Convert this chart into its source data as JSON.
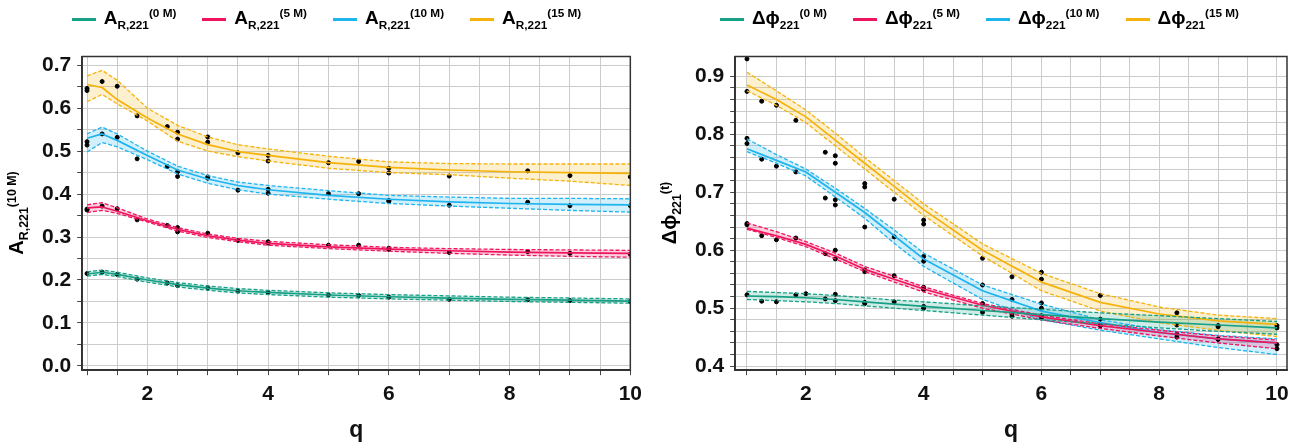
{
  "chart_data": [
    {
      "type": "line",
      "xlabel": "q",
      "ylabel": "A$_{R,221}$$^{(10 M)}$",
      "legend": "top",
      "grid": true,
      "xlim": [
        0.92,
        10
      ],
      "ylim": [
        -0.01,
        0.72
      ],
      "xticks": [
        {
          "value": 1,
          "label": null
        },
        {
          "value": 1.5,
          "label": null
        },
        2,
        {
          "value": 2.5,
          "label": null
        },
        {
          "value": 3,
          "label": null
        },
        {
          "value": 3.5,
          "label": null
        },
        4,
        {
          "value": 4.5,
          "label": null
        },
        {
          "value": 5,
          "label": null
        },
        {
          "value": 5.5,
          "label": null
        },
        6,
        {
          "value": 6.5,
          "label": null
        },
        {
          "value": 7,
          "label": null
        },
        {
          "value": 7.5,
          "label": null
        },
        8,
        {
          "value": 8.5,
          "label": null
        },
        {
          "value": 9,
          "label": null
        },
        {
          "value": 9.5,
          "label": null
        },
        10
      ],
      "yticks": [
        {
          "value": 0,
          "label": "0.0"
        },
        {
          "value": 0.05,
          "label": null
        },
        0.1,
        {
          "value": 0.15,
          "label": null
        },
        0.2,
        {
          "value": 0.25,
          "label": null
        },
        0.3,
        {
          "value": 0.35,
          "label": null
        },
        0.4,
        {
          "value": 0.45,
          "label": null
        },
        0.5,
        {
          "value": 0.55,
          "label": null
        },
        0.6,
        {
          "value": 0.65,
          "label": null
        },
        0.7
      ],
      "x": [
        1,
        1.25,
        1.5,
        2,
        2.5,
        3,
        3.5,
        4,
        5,
        6,
        7,
        8,
        9,
        10
      ],
      "series": [
        {
          "type": "line",
          "name": "A$_{R,221}$$^{(0 M)}$",
          "color": "#16a085",
          "values": [
            0.214,
            0.218,
            0.213,
            0.2,
            0.189,
            0.181,
            0.175,
            0.171,
            0.165,
            0.161,
            0.158,
            0.155,
            0.153,
            0.151
          ],
          "upper": [
            0.219,
            0.223,
            0.218,
            0.205,
            0.194,
            0.186,
            0.18,
            0.176,
            0.17,
            0.166,
            0.163,
            0.16,
            0.158,
            0.156
          ],
          "lower": [
            0.209,
            0.213,
            0.208,
            0.195,
            0.184,
            0.176,
            0.17,
            0.166,
            0.16,
            0.156,
            0.153,
            0.15,
            0.148,
            0.146
          ]
        },
        {
          "type": "line",
          "line_style": "dashed",
          "color": "#16a085",
          "values": [
            0.219,
            0.223,
            0.218,
            0.205,
            0.194,
            0.186,
            0.18,
            0.176,
            0.17,
            0.166,
            0.163,
            0.16,
            0.158,
            0.156
          ]
        },
        {
          "type": "line",
          "line_style": "dashed",
          "color": "#16a085",
          "values": [
            0.209,
            0.213,
            0.208,
            0.195,
            0.184,
            0.176,
            0.17,
            0.166,
            0.16,
            0.156,
            0.153,
            0.15,
            0.148,
            0.146
          ]
        },
        {
          "type": "line",
          "name": "A$_{R,221}$$^{(5 M)}$",
          "color": "#f0145f",
          "values": [
            0.368,
            0.37,
            0.36,
            0.338,
            0.318,
            0.303,
            0.293,
            0.285,
            0.277,
            0.272,
            0.268,
            0.265,
            0.263,
            0.262
          ],
          "upper": [
            0.375,
            0.38,
            0.368,
            0.342,
            0.322,
            0.307,
            0.297,
            0.29,
            0.282,
            0.276,
            0.273,
            0.271,
            0.27,
            0.269
          ],
          "lower": [
            0.357,
            0.362,
            0.355,
            0.335,
            0.314,
            0.299,
            0.289,
            0.281,
            0.273,
            0.267,
            0.262,
            0.258,
            0.255,
            0.253
          ]
        },
        {
          "type": "line",
          "line_style": "dashed",
          "color": "#f0145f",
          "values": [
            0.375,
            0.38,
            0.368,
            0.342,
            0.322,
            0.307,
            0.297,
            0.29,
            0.282,
            0.276,
            0.273,
            0.271,
            0.27,
            0.269
          ]
        },
        {
          "type": "line",
          "line_style": "dashed",
          "color": "#f0145f",
          "values": [
            0.357,
            0.362,
            0.355,
            0.335,
            0.314,
            0.299,
            0.289,
            0.281,
            0.273,
            0.267,
            0.262,
            0.258,
            0.255,
            0.253
          ]
        },
        {
          "type": "line",
          "name": "A$_{R,221}$$^{(10 M)}$",
          "color": "#1eb4ee",
          "values": [
            0.53,
            0.54,
            0.525,
            0.49,
            0.456,
            0.435,
            0.42,
            0.41,
            0.397,
            0.388,
            0.382,
            0.378,
            0.376,
            0.375
          ],
          "upper": [
            0.54,
            0.556,
            0.54,
            0.5,
            0.465,
            0.443,
            0.428,
            0.42,
            0.408,
            0.397,
            0.393,
            0.39,
            0.39,
            0.389
          ],
          "lower": [
            0.498,
            0.52,
            0.51,
            0.48,
            0.447,
            0.425,
            0.41,
            0.4,
            0.388,
            0.378,
            0.372,
            0.367,
            0.362,
            0.358
          ]
        },
        {
          "type": "line",
          "line_style": "dashed",
          "color": "#1eb4ee",
          "values": [
            0.54,
            0.556,
            0.54,
            0.5,
            0.465,
            0.443,
            0.428,
            0.42,
            0.408,
            0.397,
            0.393,
            0.39,
            0.39,
            0.389
          ]
        },
        {
          "type": "line",
          "line_style": "dashed",
          "color": "#1eb4ee",
          "values": [
            0.498,
            0.52,
            0.51,
            0.48,
            0.447,
            0.425,
            0.41,
            0.4,
            0.388,
            0.378,
            0.372,
            0.367,
            0.362,
            0.358
          ]
        },
        {
          "type": "line",
          "name": "A$_{R,221}$$^{(15 M)}$",
          "color": "#f5b20b",
          "values": [
            0.655,
            0.648,
            0.62,
            0.577,
            0.54,
            0.515,
            0.499,
            0.49,
            0.473,
            0.462,
            0.456,
            0.452,
            0.45,
            0.448
          ],
          "upper": [
            0.675,
            0.688,
            0.665,
            0.6,
            0.56,
            0.533,
            0.515,
            0.505,
            0.488,
            0.475,
            0.471,
            0.47,
            0.47,
            0.47
          ],
          "lower": [
            0.615,
            0.632,
            0.61,
            0.57,
            0.523,
            0.5,
            0.487,
            0.477,
            0.46,
            0.45,
            0.445,
            0.437,
            0.43,
            0.42
          ]
        },
        {
          "type": "line",
          "line_style": "dashed",
          "color": "#f5b20b",
          "values": [
            0.675,
            0.688,
            0.665,
            0.6,
            0.56,
            0.533,
            0.515,
            0.505,
            0.488,
            0.475,
            0.471,
            0.47,
            0.47,
            0.47
          ]
        },
        {
          "type": "line",
          "line_style": "dashed",
          "color": "#f5b20b",
          "values": [
            0.615,
            0.632,
            0.61,
            0.57,
            0.523,
            0.5,
            0.487,
            0.477,
            0.46,
            0.45,
            0.445,
            0.437,
            0.43,
            0.42
          ]
        },
        {
          "type": "scatter",
          "color": "#000000",
          "marker": "circle",
          "x": [
            1,
            1,
            1.25,
            1.5,
            1.83,
            2.33,
            2.5,
            2.5,
            3,
            3,
            3.5,
            4,
            4,
            5,
            5.5,
            6,
            6,
            7,
            8.3,
            9,
            10,
            1,
            1,
            1.25,
            1.5,
            1.83,
            2.33,
            2.5,
            2.5,
            3,
            3,
            3.5,
            4,
            4,
            5,
            5.5,
            6,
            6,
            7,
            8.3,
            9,
            10,
            1,
            1,
            1.25,
            1.5,
            1.83,
            2.33,
            2.5,
            2.5,
            3,
            3.5,
            4,
            4,
            5,
            5.5,
            6,
            6,
            7,
            8.3,
            9,
            10,
            1,
            1.25,
            1.5,
            1.83,
            2.33,
            2.5,
            3,
            3.5,
            4,
            5,
            5.5,
            6,
            7,
            8.3,
            9,
            10
          ],
          "values": [
            0.646,
            0.641,
            0.662,
            0.651,
            0.582,
            0.557,
            0.544,
            0.528,
            0.533,
            0.521,
            0.496,
            0.49,
            0.477,
            0.473,
            0.476,
            0.46,
            0.449,
            0.442,
            0.454,
            0.443,
            0.44,
            0.522,
            0.514,
            0.54,
            0.532,
            0.482,
            0.464,
            0.452,
            0.441,
            0.44,
            0.437,
            0.409,
            0.411,
            0.402,
            0.401,
            0.401,
            0.385,
            0.383,
            0.374,
            0.381,
            0.373,
            0.373,
            0.365,
            0.363,
            0.372,
            0.366,
            0.34,
            0.327,
            0.322,
            0.312,
            0.309,
            0.292,
            0.289,
            0.286,
            0.281,
            0.281,
            0.274,
            0.271,
            0.264,
            0.266,
            0.262,
            0.26,
            0.215,
            0.218,
            0.213,
            0.202,
            0.193,
            0.187,
            0.182,
            0.174,
            0.171,
            0.165,
            0.164,
            0.16,
            0.155,
            0.154,
            0.152,
            0.15
          ]
        }
      ]
    },
    {
      "type": "line",
      "xlabel": "q",
      "ylabel": "Δϕ$_{221}$$^{(t)}$",
      "legend": "top",
      "grid": true,
      "xlim": [
        0.8,
        10.17
      ],
      "ylim": [
        0.393,
        0.934
      ],
      "xticks": [
        {
          "value": 1,
          "label": null
        },
        {
          "value": 1.5,
          "label": null
        },
        2,
        {
          "value": 2.5,
          "label": null
        },
        {
          "value": 3,
          "label": null
        },
        {
          "value": 3.5,
          "label": null
        },
        4,
        {
          "value": 4.5,
          "label": null
        },
        {
          "value": 5,
          "label": null
        },
        {
          "value": 5.5,
          "label": null
        },
        6,
        {
          "value": 6.5,
          "label": null
        },
        {
          "value": 7,
          "label": null
        },
        {
          "value": 7.5,
          "label": null
        },
        8,
        {
          "value": 8.5,
          "label": null
        },
        {
          "value": 9,
          "label": null
        },
        {
          "value": 9.5,
          "label": null
        },
        10
      ],
      "yticks": [
        0.4,
        {
          "value": 0.42,
          "label": null
        },
        {
          "value": 0.44,
          "label": null
        },
        {
          "value": 0.46,
          "label": null
        },
        {
          "value": 0.48,
          "label": null
        },
        0.5,
        {
          "value": 0.52,
          "label": null
        },
        {
          "value": 0.54,
          "label": null
        },
        {
          "value": 0.56,
          "label": null
        },
        {
          "value": 0.58,
          "label": null
        },
        0.6,
        {
          "value": 0.62,
          "label": null
        },
        {
          "value": 0.64,
          "label": null
        },
        {
          "value": 0.66,
          "label": null
        },
        {
          "value": 0.68,
          "label": null
        },
        0.7,
        {
          "value": 0.72,
          "label": null
        },
        {
          "value": 0.74,
          "label": null
        },
        {
          "value": 0.76,
          "label": null
        },
        {
          "value": 0.78,
          "label": null
        },
        0.8,
        {
          "value": 0.82,
          "label": null
        },
        {
          "value": 0.84,
          "label": null
        },
        {
          "value": 0.86,
          "label": null
        },
        {
          "value": 0.88,
          "label": null
        },
        0.9
      ],
      "x": [
        1,
        1.5,
        2,
        2.5,
        3,
        3.5,
        4,
        5,
        6,
        7,
        8,
        9,
        10
      ],
      "series": [
        {
          "type": "line",
          "name": "Δϕ$_{221}$$^{(0 M)}$",
          "color": "#16a085",
          "values": [
            0.521,
            0.52,
            0.518,
            0.515,
            0.511,
            0.507,
            0.503,
            0.496,
            0.489,
            0.482,
            0.476,
            0.471,
            0.466
          ],
          "upper": [
            0.529,
            0.527,
            0.525,
            0.522,
            0.518,
            0.514,
            0.511,
            0.504,
            0.498,
            0.492,
            0.487,
            0.482,
            0.477
          ],
          "lower": [
            0.515,
            0.513,
            0.511,
            0.508,
            0.504,
            0.5,
            0.496,
            0.488,
            0.48,
            0.473,
            0.466,
            0.46,
            0.455
          ]
        },
        {
          "type": "line",
          "line_style": "dashed",
          "color": "#16a085",
          "values": [
            0.529,
            0.527,
            0.525,
            0.522,
            0.518,
            0.514,
            0.511,
            0.504,
            0.498,
            0.492,
            0.487,
            0.482,
            0.477
          ]
        },
        {
          "type": "line",
          "line_style": "dashed",
          "color": "#16a085",
          "values": [
            0.515,
            0.513,
            0.511,
            0.508,
            0.504,
            0.5,
            0.496,
            0.488,
            0.48,
            0.473,
            0.466,
            0.46,
            0.455
          ]
        },
        {
          "type": "line",
          "name": "Δϕ$_{221}$$^{(5 M)}$",
          "color": "#f0145f",
          "values": [
            0.638,
            0.625,
            0.61,
            0.59,
            0.567,
            0.55,
            0.533,
            0.505,
            0.485,
            0.47,
            0.458,
            0.447,
            0.44
          ],
          "upper": [
            0.647,
            0.632,
            0.615,
            0.595,
            0.572,
            0.555,
            0.537,
            0.508,
            0.488,
            0.473,
            0.462,
            0.452,
            0.445
          ],
          "lower": [
            0.636,
            0.622,
            0.606,
            0.585,
            0.563,
            0.545,
            0.528,
            0.5,
            0.48,
            0.465,
            0.452,
            0.44,
            0.43
          ]
        },
        {
          "type": "line",
          "line_style": "dashed",
          "color": "#f0145f",
          "values": [
            0.647,
            0.632,
            0.615,
            0.595,
            0.572,
            0.555,
            0.537,
            0.508,
            0.488,
            0.473,
            0.462,
            0.452,
            0.445
          ]
        },
        {
          "type": "line",
          "line_style": "dashed",
          "color": "#f0145f",
          "values": [
            0.636,
            0.622,
            0.606,
            0.585,
            0.563,
            0.545,
            0.528,
            0.5,
            0.48,
            0.465,
            0.452,
            0.44,
            0.43
          ]
        },
        {
          "type": "line",
          "name": "Δϕ$_{221}$$^{(10 M)}$",
          "color": "#1eb4ee",
          "values": [
            0.775,
            0.755,
            0.735,
            0.7,
            0.665,
            0.625,
            0.585,
            0.53,
            0.495,
            0.475,
            0.458,
            0.447,
            0.44
          ],
          "upper": [
            0.792,
            0.765,
            0.74,
            0.707,
            0.672,
            0.635,
            0.595,
            0.54,
            0.507,
            0.48,
            0.463,
            0.453,
            0.447
          ],
          "lower": [
            0.77,
            0.75,
            0.728,
            0.692,
            0.655,
            0.612,
            0.572,
            0.515,
            0.48,
            0.462,
            0.447,
            0.432,
            0.42
          ]
        },
        {
          "type": "line",
          "line_style": "dashed",
          "color": "#1eb4ee",
          "values": [
            0.792,
            0.765,
            0.74,
            0.707,
            0.672,
            0.635,
            0.595,
            0.54,
            0.507,
            0.48,
            0.463,
            0.453,
            0.447
          ]
        },
        {
          "type": "line",
          "line_style": "dashed",
          "color": "#1eb4ee",
          "values": [
            0.77,
            0.75,
            0.728,
            0.692,
            0.655,
            0.612,
            0.572,
            0.515,
            0.48,
            0.462,
            0.447,
            0.432,
            0.42
          ]
        },
        {
          "type": "line",
          "name": "Δϕ$_{221}$$^{(15 M)}$",
          "color": "#f5b20b",
          "values": [
            0.885,
            0.86,
            0.83,
            0.79,
            0.75,
            0.71,
            0.67,
            0.6,
            0.545,
            0.51,
            0.49,
            0.478,
            0.472
          ],
          "upper": [
            0.907,
            0.875,
            0.842,
            0.802,
            0.76,
            0.72,
            0.68,
            0.611,
            0.56,
            0.525,
            0.502,
            0.488,
            0.482
          ],
          "lower": [
            0.875,
            0.85,
            0.82,
            0.78,
            0.74,
            0.7,
            0.66,
            0.59,
            0.53,
            0.495,
            0.475,
            0.462,
            0.451
          ]
        },
        {
          "type": "line",
          "line_style": "dashed",
          "color": "#f5b20b",
          "values": [
            0.907,
            0.875,
            0.842,
            0.802,
            0.76,
            0.72,
            0.68,
            0.611,
            0.56,
            0.525,
            0.502,
            0.488,
            0.482
          ]
        },
        {
          "type": "line",
          "line_style": "dashed",
          "color": "#f5b20b",
          "values": [
            0.875,
            0.85,
            0.82,
            0.78,
            0.74,
            0.7,
            0.66,
            0.59,
            0.53,
            0.495,
            0.475,
            0.462,
            0.451
          ]
        },
        {
          "type": "scatter",
          "color": "#000000",
          "marker": "circle",
          "x": [
            1,
            1,
            1.25,
            1.5,
            1.83,
            2.33,
            2.5,
            2.5,
            3,
            3,
            3.5,
            4,
            4,
            5,
            5.5,
            6,
            6,
            7,
            8.3,
            9,
            10,
            1,
            1,
            1.25,
            1.5,
            1.83,
            2.33,
            2.5,
            2.5,
            3,
            3.5,
            4,
            4,
            5,
            5.5,
            6,
            6,
            7,
            8.3,
            9,
            10,
            1,
            1,
            1.25,
            1.5,
            1.83,
            2.33,
            2.5,
            2.5,
            3,
            3,
            3.5,
            4,
            4,
            5,
            5.5,
            6,
            6,
            7,
            8.3,
            9,
            10,
            1,
            1.25,
            1.5,
            1.83,
            2,
            2.33,
            2.5,
            2.5,
            3,
            3,
            3.5,
            4,
            4,
            5,
            5.5,
            7,
            8.3,
            9,
            10
          ],
          "values": [
            0.93,
            0.874,
            0.857,
            0.85,
            0.824,
            0.769,
            0.763,
            0.75,
            0.715,
            0.709,
            0.688,
            0.652,
            0.645,
            0.586,
            0.554,
            0.562,
            0.55,
            0.522,
            0.492,
            0.47,
            0.47,
            0.793,
            0.784,
            0.757,
            0.745,
            0.735,
            0.69,
            0.687,
            0.678,
            0.64,
            0.623,
            0.589,
            0.581,
            0.54,
            0.515,
            0.509,
            0.5,
            0.481,
            0.471,
            0.468,
            0.437,
            0.646,
            0.644,
            0.625,
            0.618,
            0.621,
            0.594,
            0.6,
            0.585,
            0.566,
            0.563,
            0.556,
            0.536,
            0.532,
            0.508,
            0.49,
            0.487,
            0.483,
            0.47,
            0.455,
            0.446,
            0.43,
            0.523,
            0.512,
            0.511,
            0.523,
            0.525,
            0.516,
            0.524,
            0.513,
            0.51,
            0.508,
            0.511,
            0.503,
            0.5,
            0.493,
            0.486,
            0.47,
            0.45,
            0.447,
            0.466
          ]
        }
      ]
    }
  ]
}
